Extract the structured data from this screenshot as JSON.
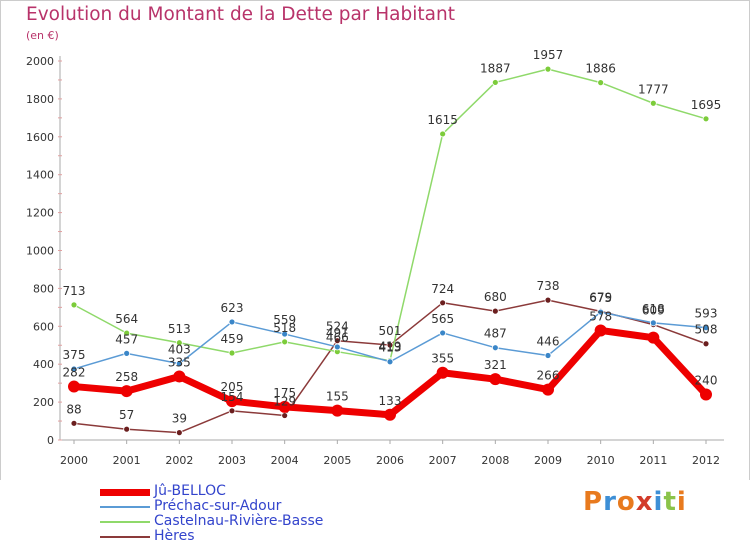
{
  "title": "Evolution du Montant de la Dette par Habitant",
  "unit": "(en €)",
  "logo": {
    "letters": [
      "P",
      "r",
      "o",
      "x",
      "i",
      "t",
      "i"
    ],
    "colors": [
      "#e87a1e",
      "#3d8fd6",
      "#e87a1e",
      "#d23b2a",
      "#3d8fd6",
      "#8bc34a",
      "#e87a1e"
    ]
  },
  "chart_data": {
    "type": "line",
    "x": [
      "2000",
      "2001",
      "2002",
      "2003",
      "2004",
      "2005",
      "2006",
      "2007",
      "2008",
      "2009",
      "2010",
      "2011",
      "2012"
    ],
    "ylim": [
      0,
      2000
    ],
    "yticks": [
      0,
      200,
      400,
      600,
      800,
      1000,
      1200,
      1400,
      1600,
      1800,
      2000
    ],
    "grid": false,
    "legend_position": "bottom-left",
    "series": [
      {
        "name": "Jû-BELLOC",
        "color": "#ee0000",
        "marker_color": "#ee0000",
        "values": [
          282,
          258,
          335,
          205,
          175,
          155,
          133,
          355,
          321,
          266,
          578,
          540,
          240
        ],
        "labels": [
          "282",
          "258",
          "335",
          "205",
          "175",
          "155",
          "133",
          "355",
          "321",
          "266",
          "578",
          "",
          "240"
        ]
      },
      {
        "name": "Préchac-sur-Adour",
        "color": "#5b9bd5",
        "marker_color": "#3a86c8",
        "values": [
          375,
          457,
          403,
          623,
          559,
          491,
          413,
          565,
          487,
          446,
          675,
          618,
          593
        ],
        "labels": [
          "375",
          "457",
          "403",
          "623",
          "559",
          "491",
          "413",
          "565",
          "487",
          "446",
          "675",
          "618",
          "593"
        ]
      },
      {
        "name": "Castelnau-Rivière-Basse",
        "color": "#8fd96a",
        "marker_color": "#7ccc3a",
        "values": [
          713,
          564,
          513,
          459,
          518,
          466,
          419,
          1615,
          1887,
          1957,
          1886,
          1777,
          1695
        ],
        "labels": [
          "713",
          "564",
          "513",
          "459",
          "518",
          "466",
          "419",
          "1615",
          "1887",
          "1957",
          "1886",
          "1777",
          "1695"
        ]
      },
      {
        "name": "Hères",
        "color": "#8b3a3a",
        "marker_color": "#6b1f1f",
        "values": [
          88,
          57,
          39,
          154,
          129,
          524,
          501,
          724,
          680,
          738,
          679,
          609,
          508
        ],
        "labels": [
          "88",
          "57",
          "39",
          "154",
          "129",
          "524",
          "501",
          "724",
          "680",
          "738",
          "679",
          "609",
          "508"
        ]
      }
    ]
  }
}
